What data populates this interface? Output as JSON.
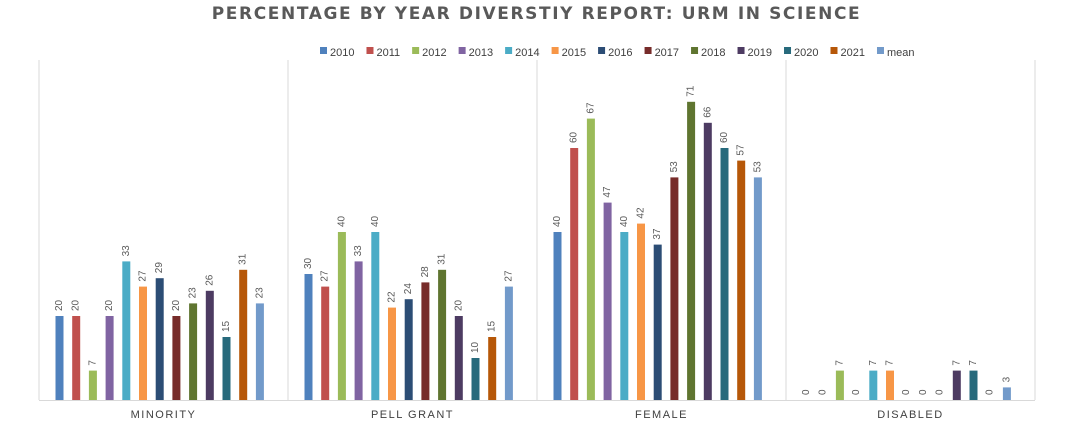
{
  "chart_data": {
    "type": "bar",
    "title": "PERCENTAGE BY YEAR DIVERSTIY REPORT: URM IN SCIENCE",
    "categories": [
      "MINORITY",
      "PELL GRANT",
      "FEMALE",
      "DISABLED"
    ],
    "ylim": [
      0,
      80
    ],
    "grid": false,
    "legend_position": "top",
    "series": [
      {
        "name": "2010",
        "color": "#4F81BD",
        "values": [
          20,
          30,
          40,
          0
        ]
      },
      {
        "name": "2011",
        "color": "#C0504D",
        "values": [
          20,
          27,
          60,
          0
        ]
      },
      {
        "name": "2012",
        "color": "#9BBB59",
        "values": [
          7,
          40,
          67,
          7
        ]
      },
      {
        "name": "2013",
        "color": "#8064A2",
        "values": [
          20,
          33,
          47,
          0
        ]
      },
      {
        "name": "2014",
        "color": "#4BACC6",
        "values": [
          33,
          40,
          40,
          7
        ]
      },
      {
        "name": "2015",
        "color": "#F79646",
        "values": [
          27,
          22,
          42,
          7
        ]
      },
      {
        "name": "2016",
        "color": "#2C4D75",
        "values": [
          29,
          24,
          37,
          0
        ]
      },
      {
        "name": "2017",
        "color": "#772C2A",
        "values": [
          20,
          28,
          53,
          0
        ]
      },
      {
        "name": "2018",
        "color": "#5F7530",
        "values": [
          23,
          31,
          71,
          0
        ]
      },
      {
        "name": "2019",
        "color": "#4D3B62",
        "values": [
          26,
          20,
          66,
          7
        ]
      },
      {
        "name": "2020",
        "color": "#276A7C",
        "values": [
          15,
          10,
          60,
          7
        ]
      },
      {
        "name": "2021",
        "color": "#B65708",
        "values": [
          31,
          15,
          57,
          0
        ]
      },
      {
        "name": "mean",
        "color": "#729ACA",
        "values": [
          23,
          27,
          53,
          3
        ]
      }
    ]
  }
}
